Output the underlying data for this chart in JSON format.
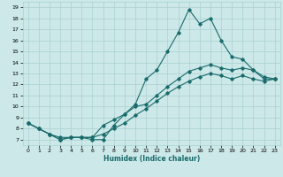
{
  "xlabel": "Humidex (Indice chaleur)",
  "xlim": [
    -0.5,
    23.5
  ],
  "ylim": [
    6.5,
    19.5
  ],
  "xticks": [
    0,
    1,
    2,
    3,
    4,
    5,
    6,
    7,
    8,
    9,
    10,
    11,
    12,
    13,
    14,
    15,
    16,
    17,
    18,
    19,
    20,
    21,
    22,
    23
  ],
  "yticks": [
    7,
    8,
    9,
    10,
    11,
    12,
    13,
    14,
    15,
    16,
    17,
    18,
    19
  ],
  "bg_color": "#cce8e8",
  "grid_color": "#aad0d0",
  "line_color": "#1a6b6b",
  "line1_x": [
    0,
    1,
    2,
    3,
    4,
    5,
    6,
    7,
    8,
    9,
    10,
    11,
    12,
    13,
    14,
    15,
    16,
    17,
    18,
    19,
    20,
    21,
    22,
    23
  ],
  "line1_y": [
    8.5,
    8.0,
    7.5,
    7.0,
    7.2,
    7.2,
    7.0,
    7.0,
    8.3,
    9.3,
    10.2,
    12.5,
    13.3,
    15.0,
    16.7,
    18.8,
    17.5,
    18.0,
    16.0,
    14.5,
    14.3,
    13.3,
    12.5,
    12.5
  ],
  "line2_x": [
    0,
    1,
    2,
    3,
    4,
    5,
    6,
    7,
    8,
    9,
    10,
    11,
    12,
    13,
    14,
    15,
    16,
    17,
    18,
    19,
    20,
    21,
    22,
    23
  ],
  "line2_y": [
    8.5,
    8.0,
    7.5,
    7.2,
    7.2,
    7.2,
    7.2,
    8.3,
    8.8,
    9.3,
    10.0,
    10.2,
    11.0,
    11.8,
    12.5,
    13.2,
    13.5,
    13.8,
    13.5,
    13.3,
    13.5,
    13.3,
    12.7,
    12.5
  ],
  "line3_x": [
    0,
    1,
    2,
    3,
    4,
    5,
    6,
    7,
    8,
    9,
    10,
    11,
    12,
    13,
    14,
    15,
    16,
    17,
    18,
    19,
    20,
    21,
    22,
    23
  ],
  "line3_y": [
    8.5,
    8.0,
    7.5,
    7.0,
    7.2,
    7.2,
    7.2,
    7.5,
    8.0,
    8.5,
    9.2,
    9.8,
    10.5,
    11.2,
    11.8,
    12.3,
    12.7,
    13.0,
    12.8,
    12.5,
    12.8,
    12.5,
    12.3,
    12.5
  ]
}
